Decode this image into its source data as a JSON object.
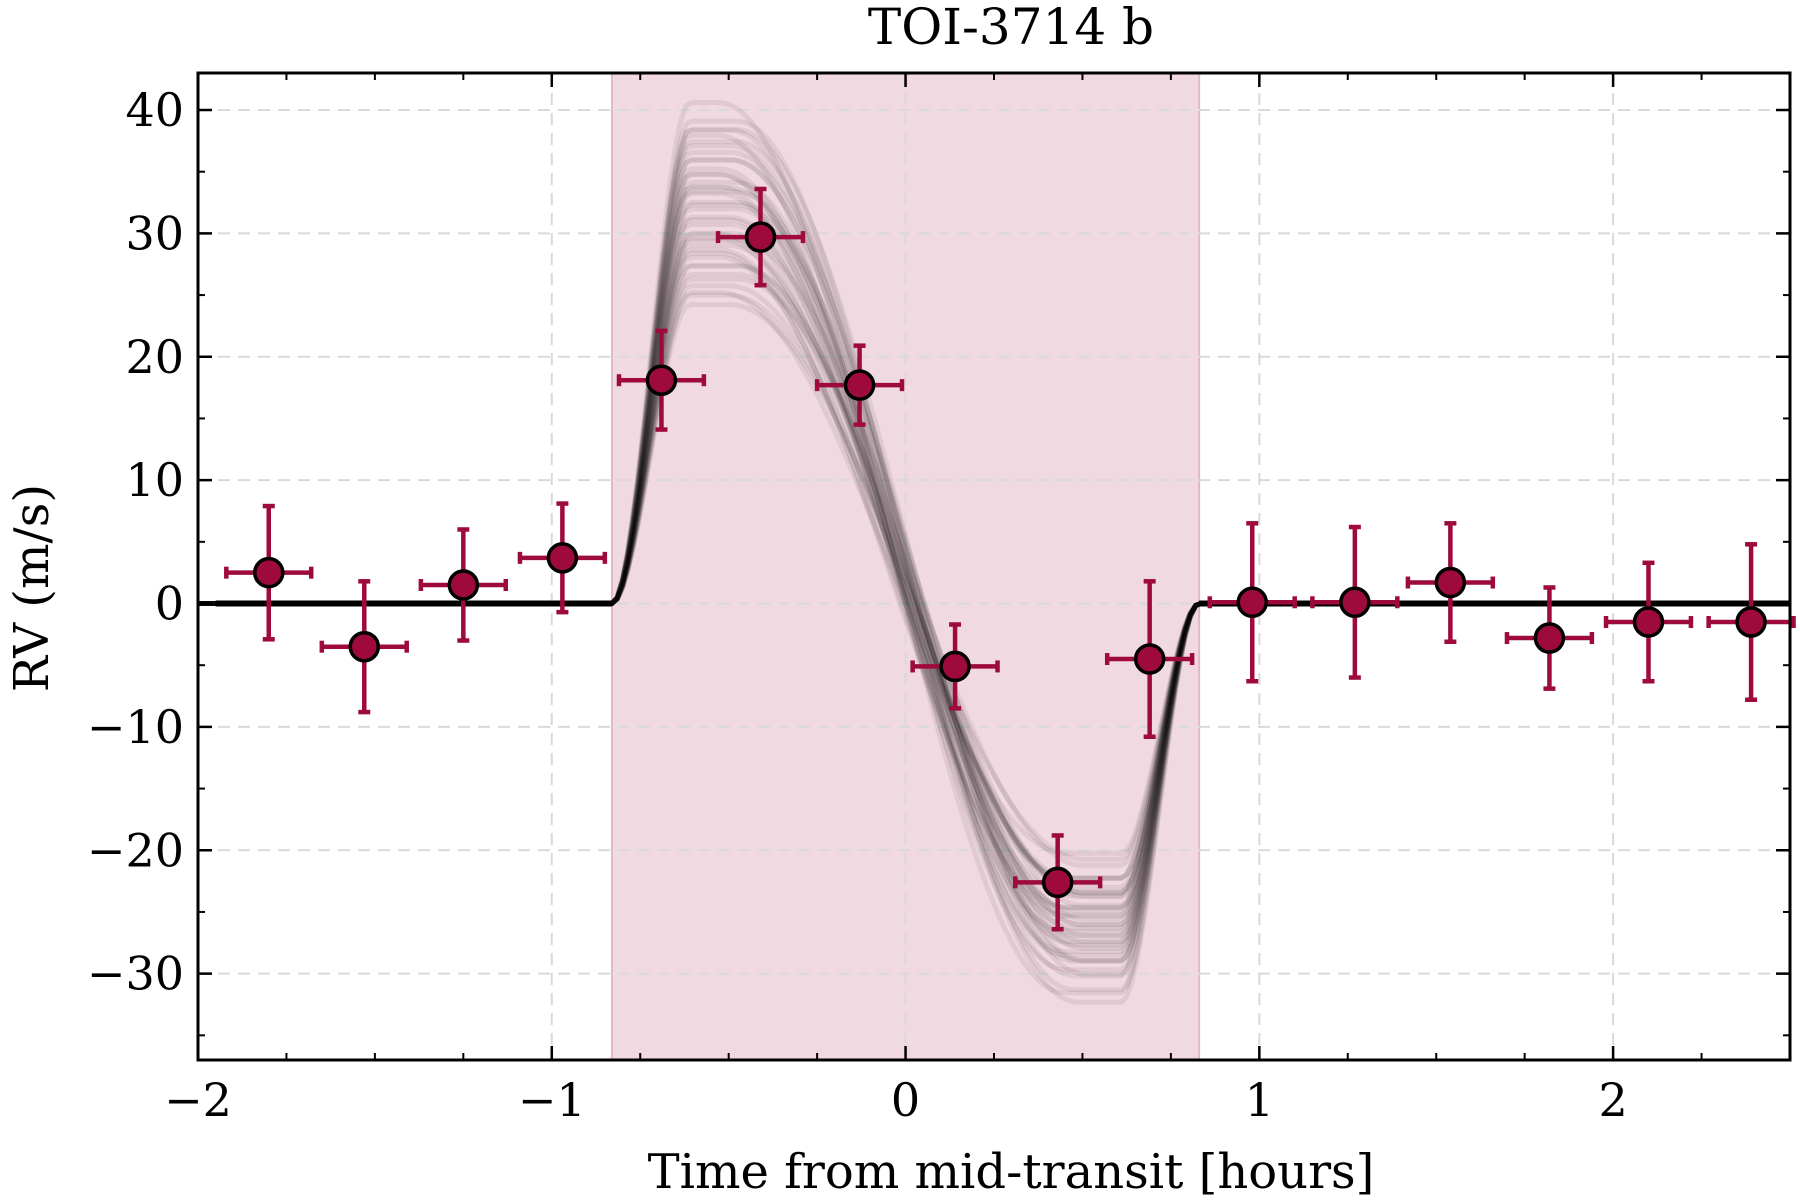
{
  "chart_data": {
    "type": "scatter",
    "title": "TOI-3714 b",
    "xlabel": "Time from mid-transit [hours]",
    "ylabel": "RV (m/s)",
    "xlim": [
      -2.0,
      2.5
    ],
    "ylim": [
      -37,
      43
    ],
    "xticks": [
      -2,
      -1,
      0,
      1,
      2
    ],
    "xtick_labels": [
      "−2",
      "−1",
      "0",
      "1",
      "2"
    ],
    "yticks": [
      -30,
      -20,
      -10,
      0,
      10,
      20,
      30,
      40
    ],
    "ytick_labels": [
      "−30",
      "−20",
      "−10",
      "0",
      "10",
      "20",
      "30",
      "40"
    ],
    "grid": true,
    "legend": "none",
    "transit_window": [
      -0.83,
      0.83
    ],
    "colors": {
      "points": "#9e0a3c",
      "transit_band": "#f0d5de",
      "model": "#000000",
      "grid": "#d9d9d9"
    },
    "model_amplitude": {
      "peak": 32,
      "trough": -26,
      "peak_time": -0.5,
      "trough_time": 0.48
    },
    "series": [
      {
        "x": [
          -1.8,
          -1.53,
          -1.25,
          -0.97,
          -0.69,
          -0.41,
          -0.13,
          0.14,
          0.43,
          0.69,
          0.98,
          1.27,
          1.54,
          1.82,
          2.1,
          2.39
        ],
        "y": [
          2.5,
          -3.5,
          1.5,
          3.7,
          18.1,
          29.7,
          17.7,
          -5.1,
          -22.6,
          -4.5,
          0.1,
          0.1,
          1.7,
          -2.8,
          -1.5,
          -1.5
        ],
        "yerr": [
          5.4,
          5.3,
          4.5,
          4.4,
          4.0,
          3.9,
          3.2,
          3.4,
          3.8,
          6.3,
          6.4,
          6.1,
          4.8,
          4.1,
          4.8,
          6.3
        ],
        "xerr": [
          0.12,
          0.12,
          0.12,
          0.12,
          0.12,
          0.12,
          0.12,
          0.12,
          0.12,
          0.12,
          0.12,
          0.12,
          0.12,
          0.12,
          0.12,
          0.12
        ]
      }
    ]
  }
}
